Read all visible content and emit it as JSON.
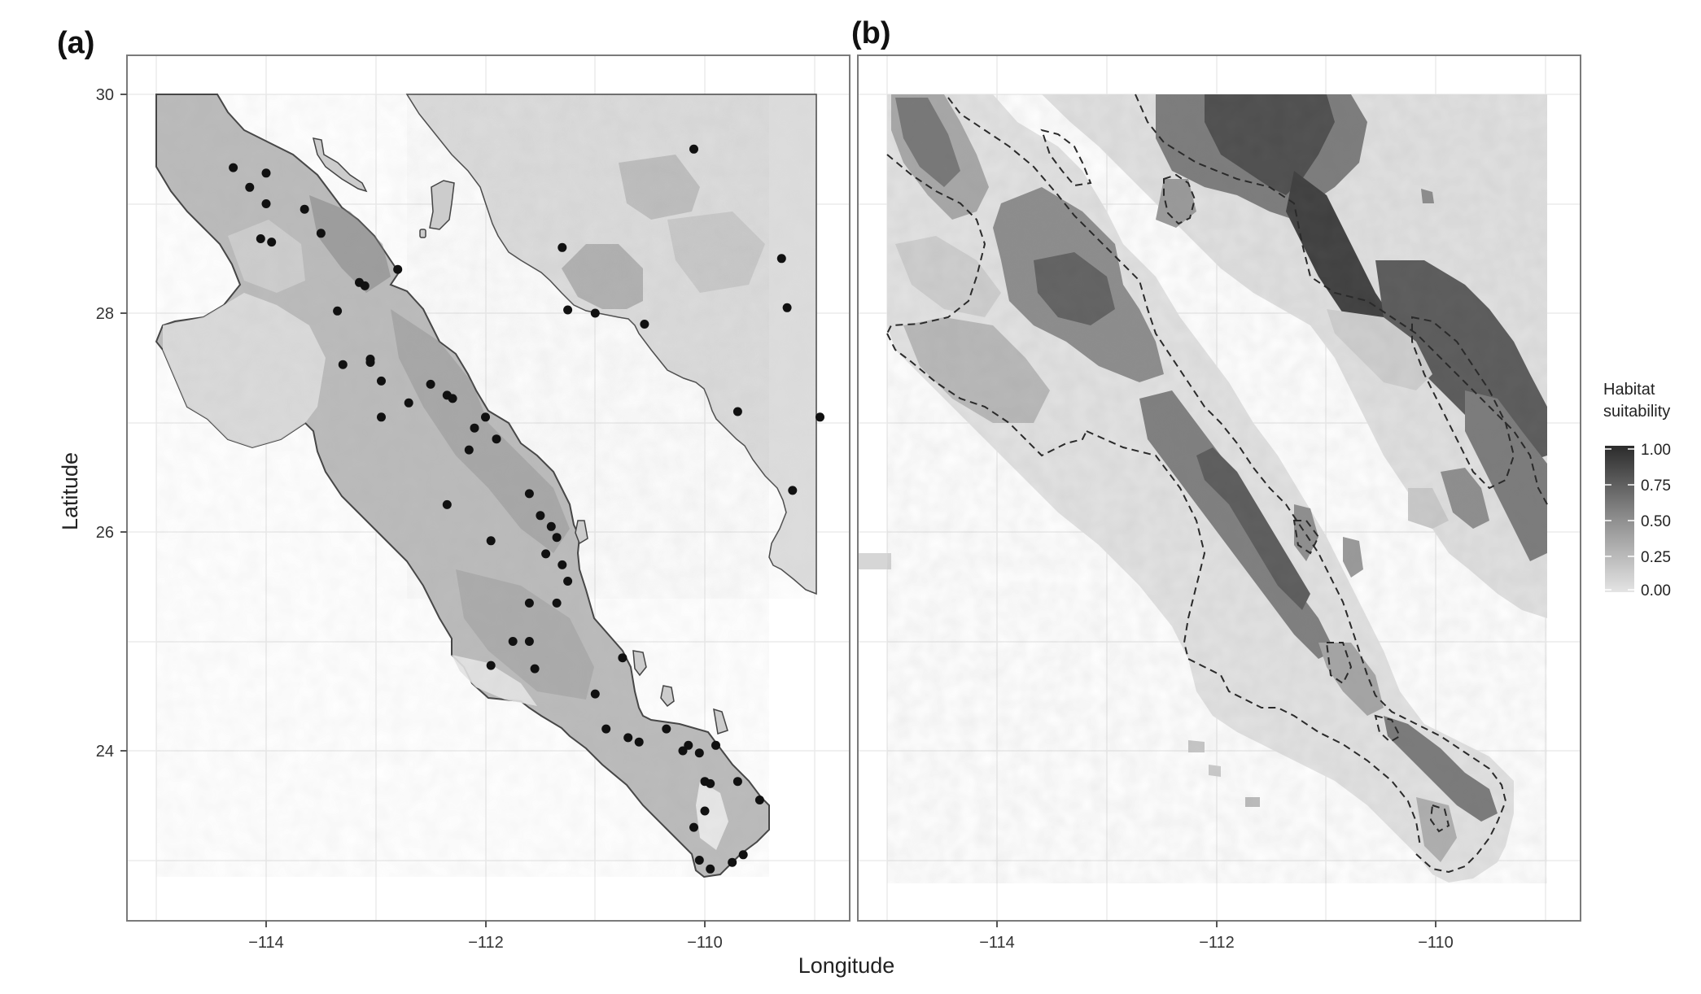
{
  "figure": {
    "panel_a_label": "(a)",
    "panel_b_label": "(b)",
    "x_axis_title": "Longitude",
    "y_axis_title": "Latitude",
    "x_ticks": [
      "−114",
      "−112",
      "−110"
    ],
    "y_ticks": [
      "30",
      "28",
      "26",
      "24"
    ],
    "legend": {
      "title_line1": "Habitat",
      "title_line2": "suitability",
      "ticks": [
        "1.00",
        "0.75",
        "0.50",
        "0.25",
        "0.00"
      ],
      "color_high": "#2b2b2b",
      "color_low": "#e4e4e4"
    }
  },
  "chart_data": {
    "type": "scatter",
    "x_range": [
      -115.3,
      -108.7
    ],
    "y_range": [
      22.5,
      30.0
    ],
    "x_tick_values": [
      -114,
      -112,
      -110
    ],
    "y_tick_values": [
      30,
      28,
      26,
      24
    ],
    "grid": true,
    "legend_position": "right",
    "occurrence_points": [
      [
        -114.3,
        29.33
      ],
      [
        -114.15,
        29.15
      ],
      [
        -114.0,
        29.28
      ],
      [
        -114.0,
        29.0
      ],
      [
        -114.05,
        28.68
      ],
      [
        -113.95,
        28.65
      ],
      [
        -113.65,
        28.95
      ],
      [
        -113.5,
        28.73
      ],
      [
        -113.15,
        28.28
      ],
      [
        -113.1,
        28.25
      ],
      [
        -112.8,
        28.4
      ],
      [
        -113.35,
        28.02
      ],
      [
        -113.3,
        27.53
      ],
      [
        -113.05,
        27.58
      ],
      [
        -113.05,
        27.55
      ],
      [
        -112.95,
        27.38
      ],
      [
        -112.95,
        27.05
      ],
      [
        -112.7,
        27.18
      ],
      [
        -112.5,
        27.35
      ],
      [
        -112.35,
        27.25
      ],
      [
        -112.3,
        27.22
      ],
      [
        -112.0,
        27.05
      ],
      [
        -112.1,
        26.95
      ],
      [
        -111.9,
        26.85
      ],
      [
        -112.15,
        26.75
      ],
      [
        -112.35,
        26.25
      ],
      [
        -111.95,
        25.92
      ],
      [
        -111.6,
        26.35
      ],
      [
        -111.5,
        26.15
      ],
      [
        -111.4,
        26.05
      ],
      [
        -111.35,
        25.95
      ],
      [
        -111.45,
        25.8
      ],
      [
        -111.3,
        25.7
      ],
      [
        -111.25,
        25.55
      ],
      [
        -111.35,
        25.35
      ],
      [
        -111.6,
        25.35
      ],
      [
        -111.75,
        25.0
      ],
      [
        -111.6,
        25.0
      ],
      [
        -111.55,
        24.75
      ],
      [
        -111.95,
        24.78
      ],
      [
        -110.75,
        24.85
      ],
      [
        -111.0,
        24.52
      ],
      [
        -110.9,
        24.2
      ],
      [
        -110.7,
        24.12
      ],
      [
        -110.6,
        24.08
      ],
      [
        -110.35,
        24.2
      ],
      [
        -110.15,
        24.05
      ],
      [
        -110.2,
        24.0
      ],
      [
        -110.05,
        23.98
      ],
      [
        -110.0,
        23.72
      ],
      [
        -109.95,
        23.7
      ],
      [
        -109.7,
        23.72
      ],
      [
        -109.5,
        23.55
      ],
      [
        -109.9,
        24.05
      ],
      [
        -110.0,
        23.45
      ],
      [
        -110.1,
        23.3
      ],
      [
        -110.05,
        23.0
      ],
      [
        -109.95,
        22.92
      ],
      [
        -109.75,
        22.98
      ],
      [
        -109.65,
        23.05
      ],
      [
        -110.1,
        29.5
      ],
      [
        -111.3,
        28.6
      ],
      [
        -111.25,
        28.03
      ],
      [
        -111.0,
        28.0
      ],
      [
        -110.55,
        27.9
      ],
      [
        -109.3,
        28.5
      ],
      [
        -109.25,
        28.05
      ],
      [
        -109.7,
        27.1
      ],
      [
        -108.95,
        27.05
      ],
      [
        -109.2,
        26.38
      ]
    ]
  }
}
